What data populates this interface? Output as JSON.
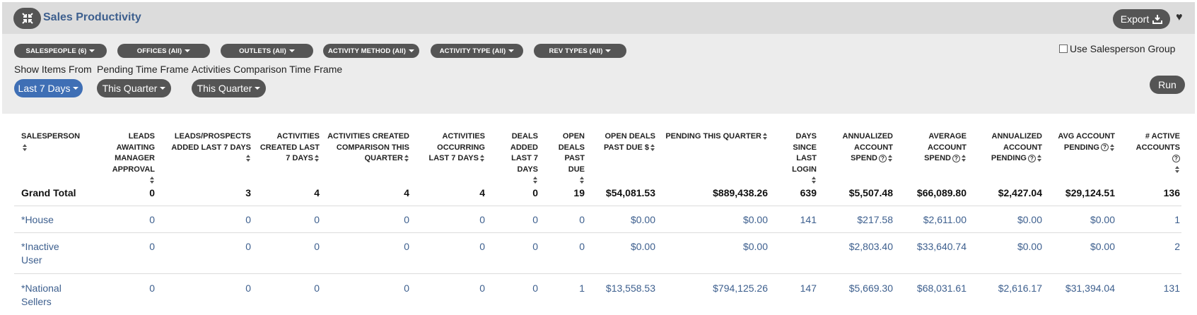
{
  "header": {
    "title": "Sales Productivity",
    "export_label": "Export"
  },
  "filters": {
    "pills": [
      {
        "label": "SALESPEOPLE (6)"
      },
      {
        "label": "OFFICES (All)"
      },
      {
        "label": "OUTLETS (All)"
      },
      {
        "label": "ACTIVITY METHOD (All)"
      },
      {
        "label": "ACTIVITY TYPE (All)"
      },
      {
        "label": "REV TYPES (All)"
      }
    ],
    "use_salesperson_group": "Use Salesperson Group",
    "show_items_from": {
      "label": "Show Items From",
      "value": "Last 7 Days"
    },
    "pending_time_frame": {
      "label": "Pending Time Frame",
      "value": "This Quarter"
    },
    "activities_comparison": {
      "label": "Activities Comparison Time Frame",
      "value": "This Quarter"
    },
    "run_label": "Run"
  },
  "colors": {
    "accent_blue": "#3f6fb5",
    "link": "#3d5f8e",
    "button_dark": "#555555"
  },
  "table": {
    "columns": [
      [
        "SALESPERSON"
      ],
      [
        "LEADS",
        "AWAITING",
        "MANAGER",
        "APPROVAL"
      ],
      [
        "LEADS/PROSPECTS",
        "ADDED LAST 7 DAYS"
      ],
      [
        "ACTIVITIES",
        "CREATED LAST",
        "7 DAYS"
      ],
      [
        "ACTIVITIES CREATED",
        "COMPARISON THIS",
        "QUARTER"
      ],
      [
        "ACTIVITIES",
        "OCCURRING",
        "LAST 7 DAYS"
      ],
      [
        "DEALS",
        "ADDED",
        "LAST 7",
        "DAYS"
      ],
      [
        "OPEN",
        "DEALS",
        "PAST DUE"
      ],
      [
        "OPEN DEALS",
        "PAST DUE $"
      ],
      [
        "PENDING THIS QUARTER"
      ],
      [
        "DAYS",
        "SINCE",
        "LAST",
        "LOGIN"
      ],
      [
        "ANNUALIZED",
        "ACCOUNT",
        "SPEND"
      ],
      [
        "AVERAGE",
        "ACCOUNT",
        "SPEND"
      ],
      [
        "ANNUALIZED",
        "ACCOUNT",
        "PENDING"
      ],
      [
        "AVG ACCOUNT",
        "PENDING"
      ],
      [
        "# ACTIVE",
        "ACCOUNTS"
      ]
    ],
    "grand_total": [
      "Grand Total",
      "0",
      "3",
      "4",
      "4",
      "4",
      "0",
      "19",
      "$54,081.53",
      "$889,438.26",
      "639",
      "$5,507.48",
      "$66,089.80",
      "$2,427.04",
      "$29,124.51",
      "136"
    ],
    "rows": [
      {
        "name": [
          "*House"
        ],
        "values": [
          "0",
          "0",
          "0",
          "0",
          "0",
          "0",
          "0",
          "$0.00",
          "$0.00",
          "141",
          "$217.58",
          "$2,611.00",
          "$0.00",
          "$0.00",
          "1"
        ]
      },
      {
        "name": [
          "*Inactive",
          "User"
        ],
        "values": [
          "0",
          "0",
          "0",
          "0",
          "0",
          "0",
          "0",
          "$0.00",
          "$0.00",
          "",
          "$2,803.40",
          "$33,640.74",
          "$0.00",
          "$0.00",
          "2"
        ]
      },
      {
        "name": [
          "*National",
          "Sellers"
        ],
        "values": [
          "0",
          "0",
          "0",
          "0",
          "0",
          "0",
          "1",
          "$13,558.53",
          "$794,125.26",
          "147",
          "$5,669.30",
          "$68,031.61",
          "$2,616.17",
          "$31,394.04",
          "131"
        ]
      }
    ]
  }
}
